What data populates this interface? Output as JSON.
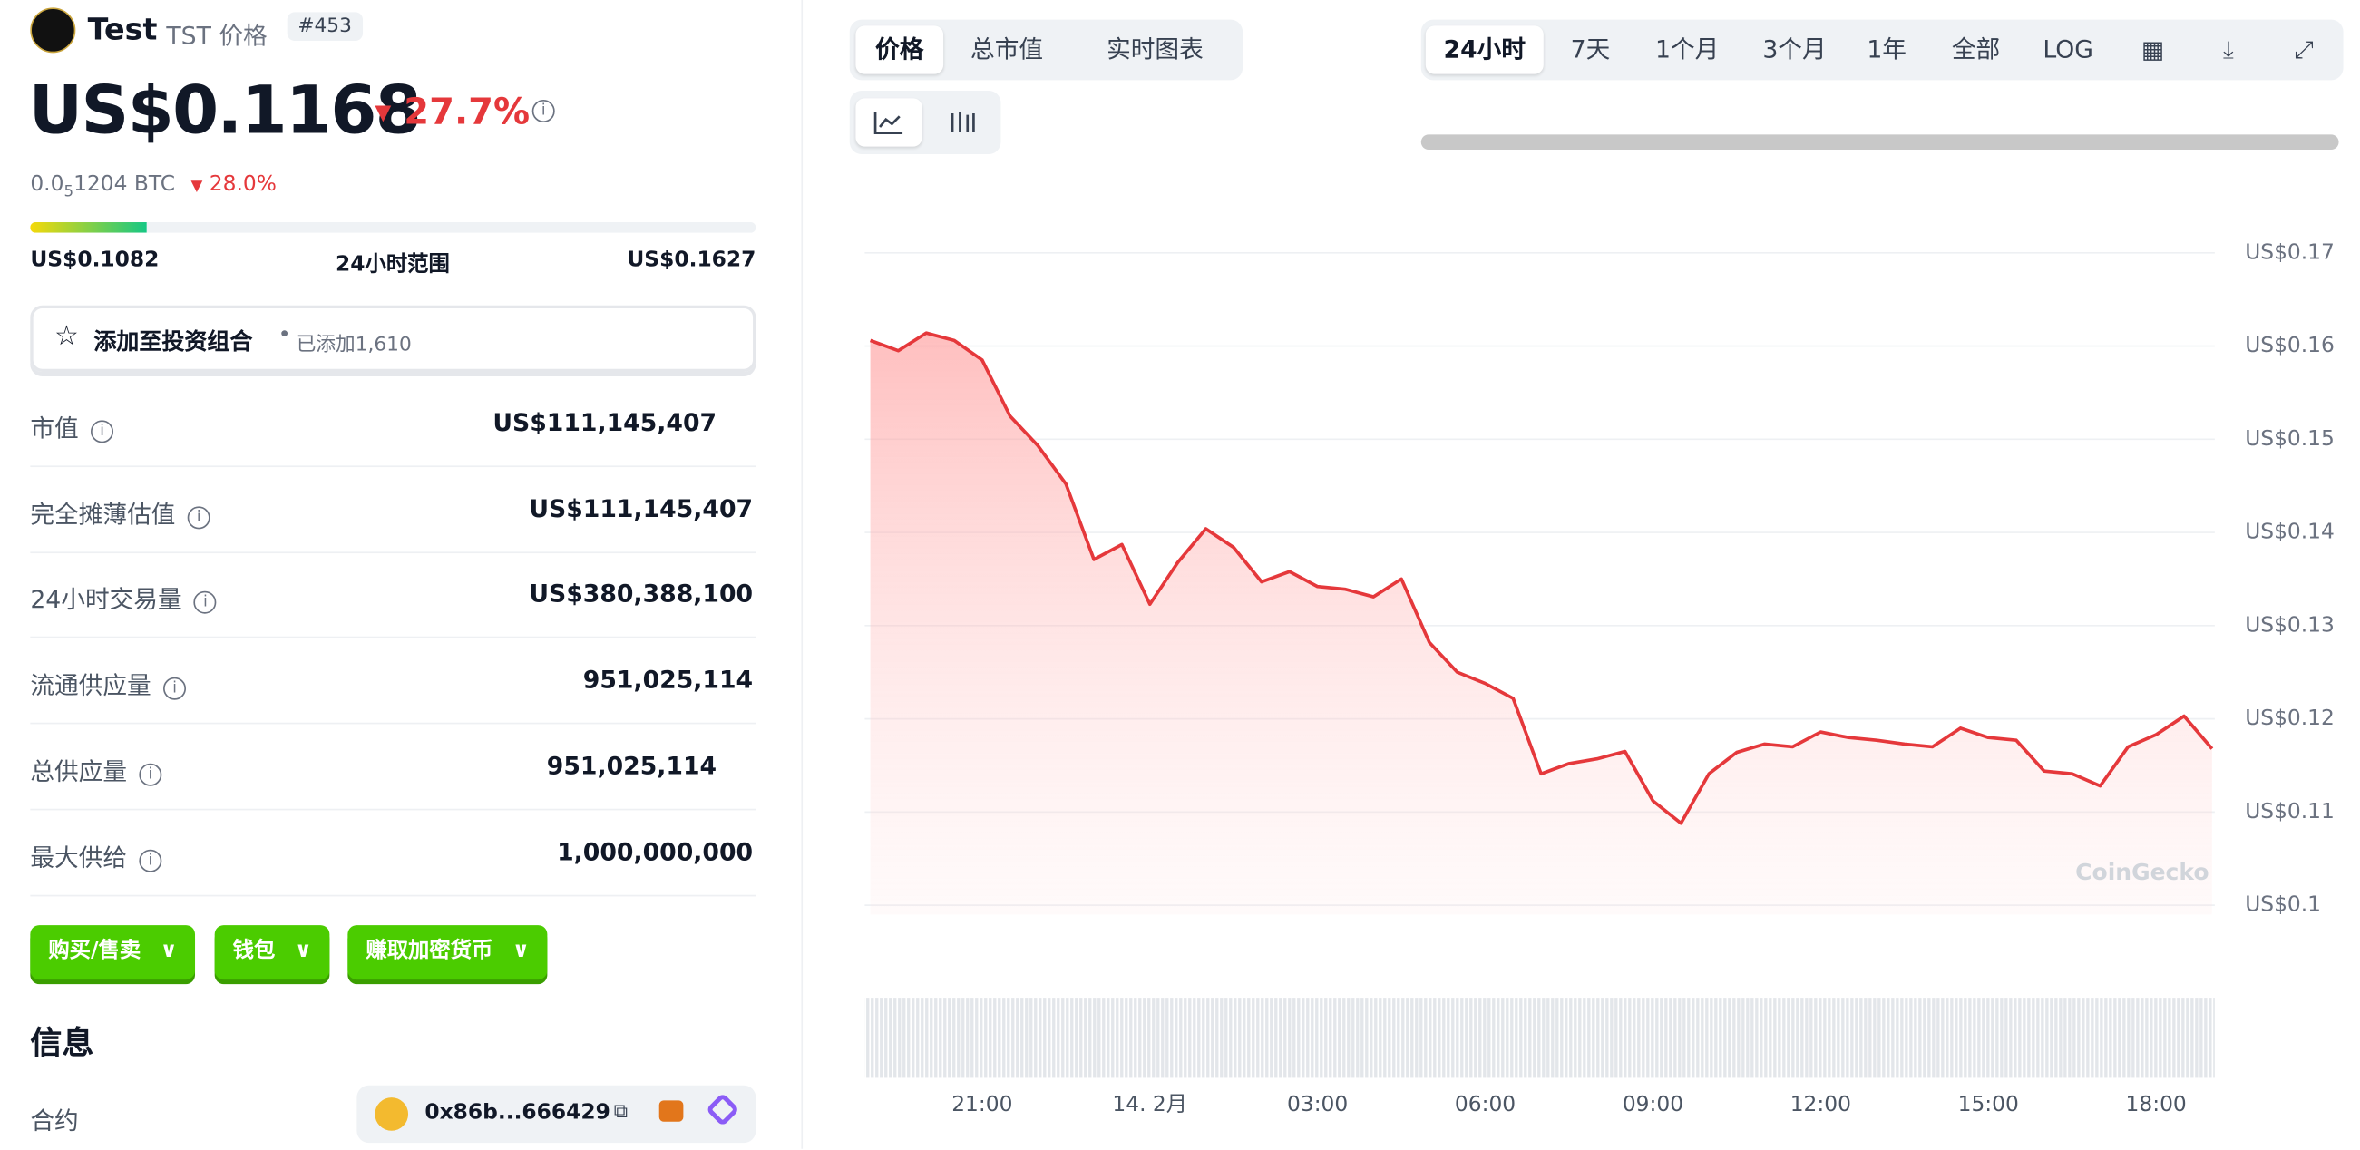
{
  "header": {
    "name": "Test",
    "symbol": "TST 价格",
    "rank": "#453"
  },
  "price": {
    "value": "US$0.1168",
    "change": "27.7%",
    "btc_prefix": "0.0",
    "btc_zeros": "5",
    "btc_rest": "1204 BTC",
    "btc_change": "28.0%"
  },
  "range": {
    "low": "US$0.1082",
    "label": "24小时范围",
    "high": "US$0.1627"
  },
  "portfolio": {
    "button": "添加至投资组合",
    "added": "已添加1,610"
  },
  "stats": [
    [
      "市值",
      "US$111,145,407"
    ],
    [
      "完全摊薄估值",
      "US$111,145,407"
    ],
    [
      "24小时交易量",
      "US$380,388,100"
    ],
    [
      "流通供应量",
      "951,025,114"
    ],
    [
      "总供应量",
      "951,025,114"
    ],
    [
      "最大供给",
      "1,000,000,000"
    ]
  ],
  "actions": [
    "购买/售卖",
    "钱包",
    "赚取加密货币"
  ],
  "info": {
    "title": "信息",
    "contract_label": "合约",
    "contract": "0x86b...666429"
  },
  "chart_tabs": [
    "价格",
    "总市值",
    "实时图表"
  ],
  "ranges": [
    "24小时",
    "7天",
    "1个月",
    "3个月",
    "1年",
    "全部",
    "LOG"
  ],
  "chart": {
    "type": "line",
    "color": "#e5383b",
    "watermark": "CoinGecko",
    "x": [
      -5,
      -4.5,
      -4,
      -3.5,
      -3,
      -2.5,
      -2,
      -1.5,
      -1,
      -0.5,
      0,
      0.5,
      1,
      1.5,
      2,
      2.5,
      3,
      3.5,
      4,
      4.5,
      5,
      5.5,
      6,
      6.5,
      7,
      7.5,
      8,
      8.5,
      9,
      9.5,
      10,
      10.5,
      11,
      11.5,
      12,
      12.5,
      13,
      13.5,
      14,
      14.5,
      15,
      15.5,
      16,
      16.5,
      17,
      17.5,
      18,
      18.5,
      19
    ],
    "values": [
      0.1606,
      0.1595,
      0.1614,
      0.1606,
      0.1585,
      0.1525,
      0.1493,
      0.1452,
      0.1371,
      0.1387,
      0.1323,
      0.1368,
      0.1404,
      0.1384,
      0.1347,
      0.1358,
      0.1342,
      0.1339,
      0.1331,
      0.135,
      0.1282,
      0.125,
      0.1238,
      0.1222,
      0.1141,
      0.1152,
      0.1157,
      0.1165,
      0.1112,
      0.1088,
      0.1141,
      0.1164,
      0.1173,
      0.117,
      0.1186,
      0.118,
      0.1177,
      0.1173,
      0.117,
      0.119,
      0.118,
      0.1177,
      0.1144,
      0.1141,
      0.1128,
      0.117,
      0.1183,
      0.1203,
      0.1168
    ],
    "xlim": [
      -5.1,
      19.05
    ],
    "xticks": [
      {
        "value": -3,
        "label": "21:00"
      },
      {
        "value": 0,
        "label": "14. 2月"
      },
      {
        "value": 3,
        "label": "03:00"
      },
      {
        "value": 6,
        "label": "06:00"
      },
      {
        "value": 9,
        "label": "09:00"
      },
      {
        "value": 12,
        "label": "12:00"
      },
      {
        "value": 15,
        "label": "15:00"
      },
      {
        "value": 18,
        "label": "18:00"
      }
    ],
    "ylim": [
      0.099,
      0.1728
    ],
    "yticks": [
      {
        "value": 0.1,
        "label": "US$0.1"
      },
      {
        "value": 0.11,
        "label": "US$0.11"
      },
      {
        "value": 0.12,
        "label": "US$0.12"
      },
      {
        "value": 0.13,
        "label": "US$0.13"
      },
      {
        "value": 0.14,
        "label": "US$0.14"
      },
      {
        "value": 0.15,
        "label": "US$0.15"
      },
      {
        "value": 0.16,
        "label": "US$0.16"
      },
      {
        "value": 0.17,
        "label": "US$0.17"
      }
    ],
    "grid": true
  }
}
